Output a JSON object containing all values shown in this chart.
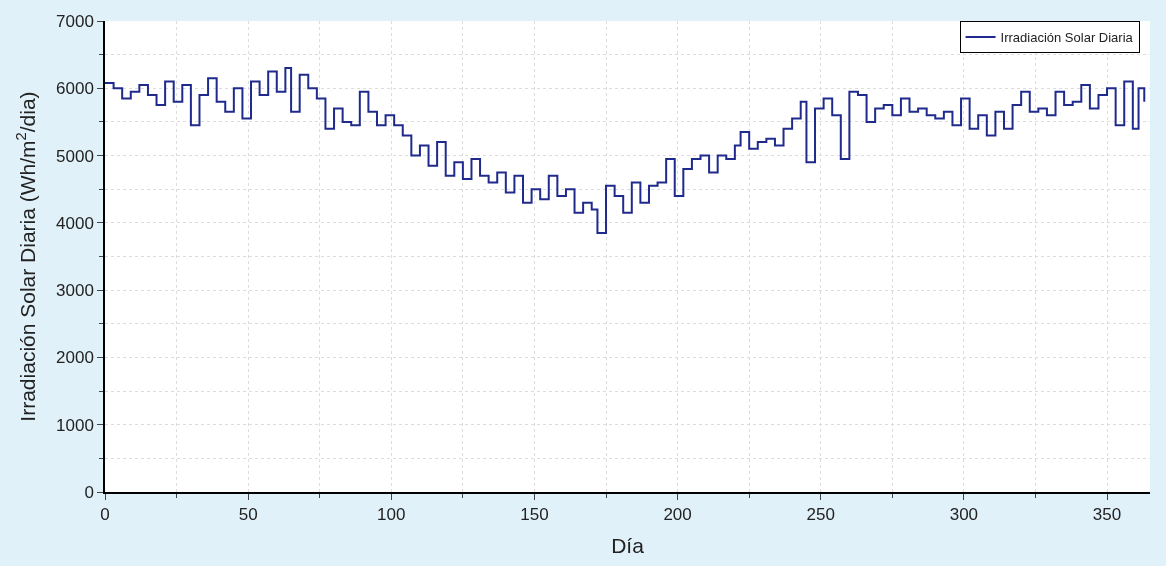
{
  "chart_data": {
    "type": "step",
    "xlabel": "Día",
    "ylabel": "Irradiación Solar Diaria (Wh/m$^{2}$/dia)",
    "xlim": [
      0,
      365
    ],
    "xticks": [
      0,
      50,
      100,
      150,
      200,
      250,
      300,
      350
    ],
    "ylim": [
      0,
      7000
    ],
    "yticks": [
      0,
      1000,
      2000,
      3000,
      4000,
      5000,
      6000,
      7000
    ],
    "grid": true,
    "legend": "top right",
    "x": [
      0,
      3,
      6,
      9,
      12,
      15,
      18,
      21,
      24,
      27,
      30,
      33,
      36,
      39,
      42,
      45,
      48,
      51,
      54,
      57,
      60,
      63,
      65,
      68,
      71,
      74,
      77,
      80,
      83,
      86,
      89,
      92,
      95,
      98,
      101,
      104,
      107,
      110,
      113,
      116,
      119,
      122,
      125,
      128,
      131,
      134,
      137,
      140,
      143,
      146,
      149,
      152,
      155,
      158,
      161,
      164,
      167,
      170,
      172,
      175,
      178,
      181,
      184,
      187,
      190,
      193,
      196,
      199,
      202,
      205,
      208,
      211,
      214,
      217,
      220,
      222,
      225,
      228,
      231,
      234,
      237,
      240,
      243,
      245,
      248,
      251,
      254,
      257,
      260,
      263,
      266,
      269,
      272,
      275,
      278,
      281,
      284,
      287,
      290,
      293,
      296,
      299,
      302,
      305,
      308,
      311,
      314,
      317,
      320,
      323,
      326,
      329,
      332,
      335,
      338,
      341,
      344,
      347,
      350,
      353,
      356,
      359,
      361,
      363
    ],
    "series": [
      {
        "name": "Irradiación Solar Diaria",
        "color": "#1f2a8c",
        "values": [
          6080,
          6000,
          5850,
          5950,
          6050,
          5900,
          5750,
          6100,
          5800,
          6050,
          5450,
          5900,
          6150,
          5800,
          5650,
          6000,
          5550,
          6100,
          5900,
          6250,
          5950,
          6300,
          5650,
          6200,
          6000,
          5850,
          5400,
          5700,
          5500,
          5450,
          5950,
          5650,
          5450,
          5600,
          5450,
          5300,
          5000,
          5150,
          4850,
          5200,
          4700,
          4900,
          4650,
          4950,
          4700,
          4600,
          4750,
          4450,
          4700,
          4300,
          4500,
          4350,
          4700,
          4400,
          4500,
          4150,
          4300,
          4200,
          3850,
          4550,
          4400,
          4150,
          4600,
          4300,
          4550,
          4600,
          4950,
          4400,
          4800,
          4950,
          5000,
          4750,
          5000,
          4950,
          5150,
          5350,
          5100,
          5200,
          5250,
          5150,
          5400,
          5550,
          5800,
          4900,
          5700,
          5850,
          5600,
          4950,
          5950,
          5900,
          5500,
          5700,
          5750,
          5600,
          5850,
          5650,
          5700,
          5600,
          5550,
          5650,
          5450,
          5850,
          5400,
          5600,
          5300,
          5650,
          5400,
          5750,
          5950,
          5650,
          5700,
          5600,
          5950,
          5750,
          5800,
          6050,
          5700,
          5900,
          6000,
          5450,
          6100,
          5400,
          6000,
          5800
        ]
      }
    ]
  }
}
